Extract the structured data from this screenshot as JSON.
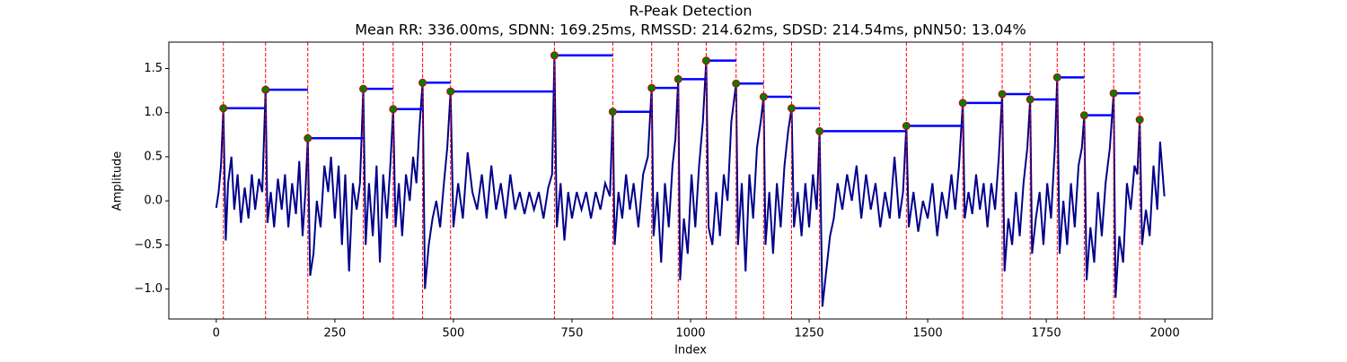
{
  "chart_data": {
    "type": "line",
    "title": "R-Peak Detection",
    "subtitle": "Mean RR: 336.00ms, SDNN: 169.25ms, RMSSD: 214.62ms, SDSD: 214.54ms, pNN50: 13.04%",
    "xlabel": "Index",
    "ylabel": "Amplitude",
    "xlim": [
      -100,
      2100
    ],
    "ylim": [
      -1.34,
      1.8
    ],
    "xticks": [
      0,
      250,
      500,
      750,
      1000,
      1250,
      1500,
      1750,
      2000
    ],
    "yticks": [
      {
        "value": -1,
        "label": "−1.0"
      },
      {
        "value": -0.5,
        "label": "−0.5"
      },
      {
        "value": 0,
        "label": "0.0"
      },
      0.5,
      {
        "value": 1,
        "label": "1.0"
      },
      1.5
    ],
    "color": "#00008b",
    "peak_color": "#008000",
    "peak_edge_color": "#cc0000",
    "peak_line_color": "#ff0000",
    "rr_color": "#0000ff",
    "x": [
      0,
      5,
      10,
      15,
      20,
      25,
      32,
      38,
      45,
      52,
      60,
      68,
      75,
      82,
      90,
      97,
      104,
      108,
      115,
      122,
      130,
      138,
      145,
      152,
      160,
      168,
      175,
      182,
      188,
      193,
      198,
      205,
      212,
      220,
      228,
      236,
      242,
      250,
      258,
      265,
      272,
      280,
      288,
      296,
      303,
      310,
      315,
      322,
      330,
      338,
      345,
      352,
      360,
      367,
      373,
      378,
      385,
      392,
      400,
      408,
      415,
      422,
      428,
      435,
      440,
      448,
      456,
      464,
      472,
      480,
      487,
      494,
      500,
      510,
      520,
      530,
      540,
      550,
      560,
      570,
      580,
      590,
      600,
      610,
      620,
      630,
      640,
      650,
      660,
      670,
      680,
      690,
      700,
      708,
      713,
      718,
      726,
      734,
      742,
      750,
      760,
      770,
      780,
      790,
      800,
      810,
      820,
      830,
      836,
      840,
      848,
      856,
      864,
      872,
      880,
      890,
      900,
      910,
      918,
      922,
      930,
      938,
      946,
      954,
      962,
      968,
      974,
      978,
      986,
      994,
      1002,
      1010,
      1018,
      1026,
      1033,
      1038,
      1046,
      1054,
      1062,
      1070,
      1078,
      1086,
      1096,
      1100,
      1108,
      1116,
      1124,
      1132,
      1140,
      1148,
      1154,
      1158,
      1166,
      1174,
      1182,
      1190,
      1198,
      1206,
      1213,
      1218,
      1226,
      1234,
      1242,
      1250,
      1258,
      1266,
      1272,
      1278,
      1286,
      1294,
      1302,
      1310,
      1320,
      1330,
      1340,
      1350,
      1360,
      1370,
      1380,
      1390,
      1400,
      1410,
      1420,
      1430,
      1440,
      1448,
      1455,
      1460,
      1470,
      1480,
      1490,
      1500,
      1510,
      1520,
      1530,
      1540,
      1550,
      1558,
      1566,
      1574,
      1578,
      1586,
      1594,
      1602,
      1610,
      1618,
      1626,
      1634,
      1642,
      1650,
      1657,
      1662,
      1670,
      1678,
      1686,
      1694,
      1702,
      1710,
      1716,
      1720,
      1728,
      1736,
      1744,
      1752,
      1760,
      1768,
      1773,
      1778,
      1786,
      1794,
      1802,
      1810,
      1818,
      1825,
      1830,
      1835,
      1843,
      1851,
      1859,
      1867,
      1875,
      1884,
      1892,
      1896,
      1904,
      1912,
      1920,
      1928,
      1936,
      1942,
      1947,
      1952,
      1960,
      1968,
      1976,
      1984,
      1990,
      1999
    ],
    "values": [
      -0.08,
      0.1,
      0.4,
      1.05,
      -0.45,
      0.2,
      0.5,
      -0.1,
      0.3,
      -0.25,
      0.15,
      -0.2,
      0.3,
      -0.1,
      0.25,
      0.1,
      1.26,
      -0.25,
      0.1,
      -0.3,
      0.25,
      -0.1,
      0.3,
      -0.3,
      0.2,
      -0.15,
      0.45,
      -0.4,
      0.1,
      0.71,
      -0.85,
      -0.6,
      0.0,
      -0.3,
      0.4,
      0.1,
      0.5,
      -0.2,
      0.4,
      -0.5,
      0.3,
      -0.8,
      0.2,
      -0.1,
      0.2,
      1.27,
      -0.5,
      0.2,
      -0.4,
      0.4,
      -0.7,
      0.3,
      -0.2,
      0.4,
      1.04,
      -0.3,
      0.2,
      -0.4,
      0.3,
      0.0,
      0.5,
      0.2,
      0.8,
      1.34,
      -1.0,
      -0.5,
      -0.2,
      0.0,
      -0.3,
      0.2,
      0.6,
      1.24,
      -0.3,
      0.2,
      -0.2,
      0.55,
      0.1,
      -0.1,
      0.3,
      -0.2,
      0.4,
      -0.1,
      0.2,
      -0.2,
      0.3,
      -0.1,
      0.1,
      -0.15,
      0.1,
      -0.1,
      0.1,
      -0.2,
      0.15,
      0.3,
      1.65,
      -0.3,
      0.2,
      -0.45,
      0.1,
      -0.2,
      0.1,
      -0.1,
      0.1,
      -0.2,
      0.1,
      -0.1,
      0.2,
      0.05,
      1.01,
      -0.5,
      0.1,
      -0.2,
      0.3,
      -0.1,
      0.2,
      -0.3,
      0.3,
      0.5,
      1.28,
      -0.4,
      0.1,
      -0.7,
      0.2,
      -0.3,
      0.4,
      0.7,
      1.38,
      -0.9,
      -0.2,
      -0.6,
      0.3,
      -0.3,
      0.4,
      0.9,
      1.59,
      -0.3,
      -0.5,
      0.1,
      -0.4,
      0.3,
      0.0,
      0.9,
      1.33,
      -0.5,
      0.2,
      -0.8,
      0.3,
      -0.2,
      0.6,
      0.9,
      1.18,
      -0.5,
      0.1,
      -0.6,
      0.2,
      -0.3,
      0.4,
      0.8,
      1.05,
      -0.3,
      0.1,
      -0.4,
      0.2,
      -0.3,
      0.3,
      -0.1,
      0.79,
      -1.2,
      -0.8,
      -0.4,
      -0.2,
      0.2,
      -0.1,
      0.3,
      0.0,
      0.4,
      -0.2,
      0.3,
      -0.1,
      0.2,
      -0.3,
      0.1,
      -0.2,
      0.5,
      -0.2,
      0.1,
      0.85,
      -0.3,
      0.1,
      -0.35,
      0.0,
      -0.2,
      0.2,
      -0.4,
      0.1,
      -0.2,
      0.3,
      -0.1,
      0.4,
      1.11,
      -0.2,
      0.1,
      -0.15,
      0.3,
      -0.1,
      0.2,
      -0.3,
      0.2,
      -0.1,
      0.5,
      1.21,
      -0.8,
      -0.2,
      -0.5,
      0.1,
      -0.4,
      0.2,
      0.6,
      1.15,
      -0.6,
      -0.2,
      0.1,
      -0.5,
      0.2,
      -0.2,
      0.6,
      1.4,
      -0.6,
      0.0,
      -0.5,
      0.2,
      -0.3,
      0.4,
      0.6,
      0.97,
      -0.9,
      -0.3,
      -0.7,
      0.1,
      -0.4,
      0.2,
      0.6,
      1.22,
      -1.1,
      -0.4,
      -0.7,
      0.2,
      -0.1,
      0.4,
      0.3,
      0.92,
      -0.5,
      -0.1,
      -0.4,
      0.4,
      -0.1,
      0.67,
      0.05
    ],
    "peaks": {
      "x": [
        15,
        104,
        193,
        310,
        373,
        435,
        494,
        713,
        836,
        918,
        974,
        1033,
        1096,
        1154,
        1213,
        1272,
        1455,
        1574,
        1657,
        1716,
        1773,
        1830,
        1892,
        1947
      ],
      "values": [
        1.05,
        1.26,
        0.71,
        1.27,
        1.04,
        1.34,
        1.24,
        1.65,
        1.01,
        1.28,
        1.38,
        1.59,
        1.33,
        1.18,
        1.05,
        0.79,
        0.85,
        1.11,
        1.21,
        1.15,
        1.4,
        0.97,
        1.22,
        0.92
      ]
    }
  }
}
